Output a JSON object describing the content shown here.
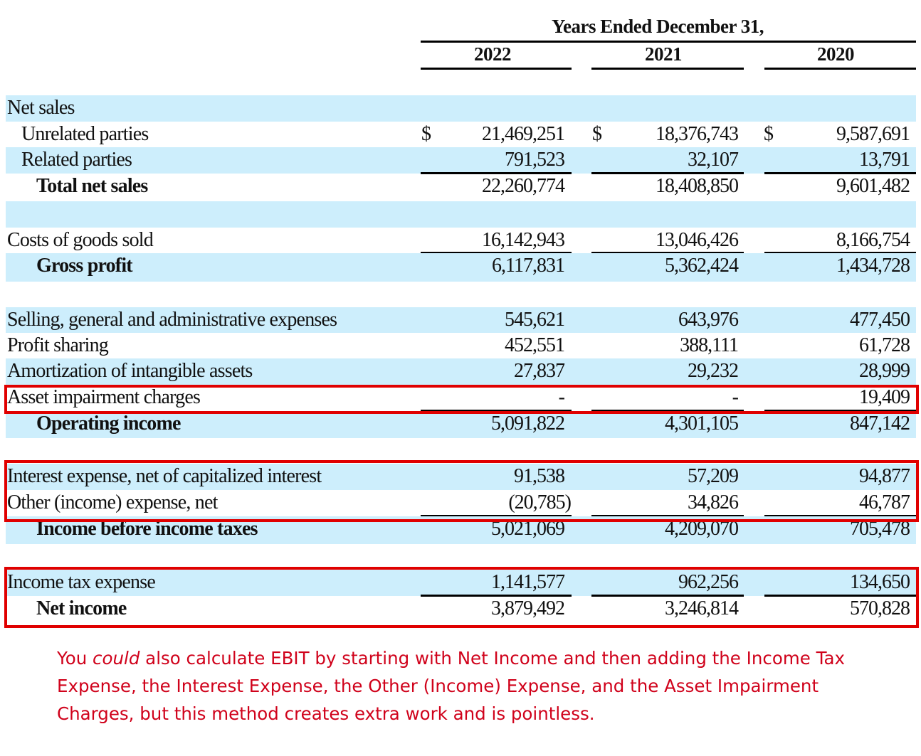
{
  "header": {
    "title": "Years Ended December 31,",
    "years": [
      "2022",
      "2021",
      "2020"
    ]
  },
  "rows": [
    {
      "label": "Net sales",
      "indent": 0,
      "bold": false,
      "values": [
        "",
        "",
        ""
      ],
      "currency": false,
      "blue": true
    },
    {
      "label": "Unrelated parties",
      "indent": 1,
      "bold": false,
      "values": [
        "21,469,251",
        "18,376,743",
        "9,587,691"
      ],
      "currency": true,
      "blue": false
    },
    {
      "label": "Related parties",
      "indent": 1,
      "bold": false,
      "values": [
        "791,523",
        "32,107",
        "13,791"
      ],
      "currency": false,
      "blue": true,
      "underline": true
    },
    {
      "label": "Total net sales",
      "indent": 2,
      "bold": true,
      "values": [
        "22,260,774",
        "18,408,850",
        "9,601,482"
      ],
      "currency": false,
      "blue": false
    },
    {
      "label": "",
      "indent": 0,
      "bold": false,
      "values": [
        "",
        "",
        ""
      ],
      "currency": false,
      "blue": true
    },
    {
      "label": "Costs of goods sold",
      "indent": 0,
      "bold": false,
      "values": [
        "16,142,943",
        "13,046,426",
        "8,166,754"
      ],
      "currency": false,
      "blue": false,
      "underline": true
    },
    {
      "label": "Gross profit",
      "indent": 2,
      "bold": true,
      "values": [
        "6,117,831",
        "5,362,424",
        "1,434,728"
      ],
      "currency": false,
      "blue": true
    },
    {
      "label": "",
      "indent": 0,
      "bold": false,
      "values": [
        "",
        "",
        ""
      ],
      "currency": false,
      "blue": false
    },
    {
      "label": "Selling, general and administrative expenses",
      "indent": 0,
      "bold": false,
      "values": [
        "545,621",
        "643,976",
        "477,450"
      ],
      "currency": false,
      "blue": true
    },
    {
      "label": "Profit sharing",
      "indent": 0,
      "bold": false,
      "values": [
        "452,551",
        "388,111",
        "61,728"
      ],
      "currency": false,
      "blue": false
    },
    {
      "label": "Amortization of intangible assets",
      "indent": 0,
      "bold": false,
      "values": [
        "27,837",
        "29,232",
        "28,999"
      ],
      "currency": false,
      "blue": true
    },
    {
      "label": "Asset impairment charges",
      "indent": 0,
      "bold": false,
      "values": [
        "-",
        "-",
        "19,409"
      ],
      "currency": false,
      "blue": false,
      "underline": true,
      "highlighted": true
    },
    {
      "label": "Operating income",
      "indent": 2,
      "bold": true,
      "values": [
        "5,091,822",
        "4,301,105",
        "847,142"
      ],
      "currency": false,
      "blue": true
    },
    {
      "label": "",
      "indent": 0,
      "bold": false,
      "values": [
        "",
        "",
        ""
      ],
      "currency": false,
      "blue": false
    },
    {
      "label": "Interest expense, net of capitalized interest",
      "indent": 0,
      "bold": false,
      "values": [
        "91,538",
        "57,209",
        "94,877"
      ],
      "currency": false,
      "blue": true,
      "highlighted": true
    },
    {
      "label": "Other (income) expense, net",
      "indent": 0,
      "bold": false,
      "values": [
        "(20,785)",
        "34,826",
        "46,787"
      ],
      "currency": false,
      "blue": false,
      "underline": true,
      "highlighted": true
    },
    {
      "label": "Income before income taxes",
      "indent": 2,
      "bold": true,
      "values": [
        "5,021,069",
        "4,209,070",
        "705,478"
      ],
      "currency": false,
      "blue": true
    },
    {
      "label": "",
      "indent": 0,
      "bold": false,
      "values": [
        "",
        "",
        ""
      ],
      "currency": false,
      "blue": false
    },
    {
      "label": "Income tax expense",
      "indent": 0,
      "bold": false,
      "values": [
        "1,141,577",
        "962,256",
        "134,650"
      ],
      "currency": false,
      "blue": true,
      "underline": true,
      "highlighted": true
    },
    {
      "label": "Net income",
      "indent": 2,
      "bold": true,
      "values": [
        "3,879,492",
        "3,246,814",
        "570,828"
      ],
      "currency": false,
      "blue": false,
      "highlighted": true
    }
  ],
  "currency_symbol": "$",
  "colors": {
    "row_highlight": "#cdeefc",
    "annotation_red": "#d0021b",
    "box_red": "#e00000"
  },
  "note": {
    "before": "You ",
    "emphasis": "could",
    "after": " also calculate EBIT by starting with Net Income and then adding the Income Tax Expense, the Interest Expense, the Other (Income) Expense, and the Asset Impairment Charges, but this method creates extra work and is pointless."
  }
}
